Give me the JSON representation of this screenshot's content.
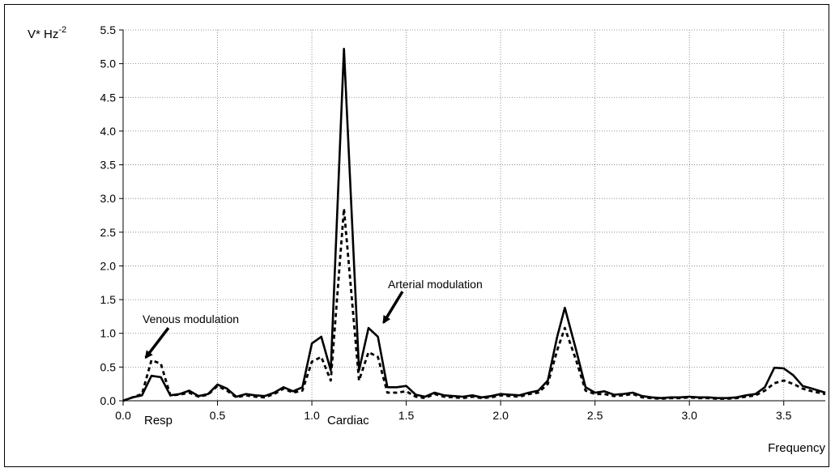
{
  "chart_data": {
    "type": "line",
    "title": "",
    "xlabel": "Frequency",
    "ylabel_main": "V* Hz",
    "ylabel_exp": "-2",
    "xlim": [
      0,
      3.72
    ],
    "ylim": [
      0,
      5.5
    ],
    "x_ticks": [
      0.0,
      0.5,
      1.0,
      1.5,
      2.0,
      2.5,
      3.0,
      3.5
    ],
    "x_tick_labels": [
      "0.0",
      "0.5",
      "1.0",
      "1.5",
      "2.0",
      "2.5",
      "3.0",
      "3.5"
    ],
    "y_ticks": [
      0.0,
      0.5,
      1.0,
      1.5,
      2.0,
      2.5,
      3.0,
      3.5,
      4.0,
      4.5,
      5.0,
      5.5
    ],
    "y_tick_labels": [
      "0.0",
      "0.5",
      "1.0",
      "1.5",
      "2.0",
      "2.5",
      "3.0",
      "3.5",
      "4.0",
      "4.5",
      "5.0",
      "5.5"
    ],
    "grid": true,
    "series": [
      {
        "style": "solid",
        "x": [
          0.0,
          0.05,
          0.1,
          0.15,
          0.2,
          0.25,
          0.3,
          0.35,
          0.4,
          0.45,
          0.5,
          0.55,
          0.6,
          0.65,
          0.7,
          0.75,
          0.8,
          0.85,
          0.9,
          0.95,
          1.0,
          1.05,
          1.1,
          1.17,
          1.25,
          1.3,
          1.35,
          1.4,
          1.45,
          1.5,
          1.55,
          1.6,
          1.65,
          1.7,
          1.75,
          1.8,
          1.85,
          1.9,
          1.95,
          2.0,
          2.05,
          2.1,
          2.15,
          2.2,
          2.25,
          2.3,
          2.34,
          2.4,
          2.45,
          2.5,
          2.55,
          2.6,
          2.65,
          2.7,
          2.75,
          2.8,
          2.85,
          2.9,
          2.95,
          3.0,
          3.05,
          3.1,
          3.15,
          3.2,
          3.25,
          3.3,
          3.35,
          3.4,
          3.45,
          3.5,
          3.55,
          3.6,
          3.65,
          3.72
        ],
        "y": [
          0.0,
          0.05,
          0.08,
          0.37,
          0.35,
          0.08,
          0.1,
          0.15,
          0.07,
          0.1,
          0.24,
          0.18,
          0.06,
          0.1,
          0.08,
          0.07,
          0.12,
          0.2,
          0.14,
          0.2,
          0.85,
          0.95,
          0.45,
          5.22,
          0.45,
          1.08,
          0.95,
          0.2,
          0.2,
          0.22,
          0.09,
          0.06,
          0.12,
          0.08,
          0.07,
          0.06,
          0.08,
          0.05,
          0.07,
          0.1,
          0.09,
          0.08,
          0.12,
          0.15,
          0.3,
          0.95,
          1.38,
          0.75,
          0.2,
          0.12,
          0.14,
          0.09,
          0.1,
          0.12,
          0.07,
          0.05,
          0.04,
          0.05,
          0.05,
          0.06,
          0.05,
          0.05,
          0.04,
          0.04,
          0.05,
          0.08,
          0.1,
          0.2,
          0.49,
          0.48,
          0.38,
          0.22,
          0.18,
          0.12
        ]
      },
      {
        "style": "dashed",
        "x": [
          0.0,
          0.05,
          0.1,
          0.15,
          0.2,
          0.25,
          0.3,
          0.35,
          0.4,
          0.45,
          0.5,
          0.55,
          0.6,
          0.65,
          0.7,
          0.75,
          0.8,
          0.85,
          0.9,
          0.95,
          1.0,
          1.05,
          1.1,
          1.17,
          1.25,
          1.3,
          1.35,
          1.4,
          1.45,
          1.5,
          1.55,
          1.6,
          1.65,
          1.7,
          1.75,
          1.8,
          1.85,
          1.9,
          1.95,
          2.0,
          2.05,
          2.1,
          2.15,
          2.2,
          2.25,
          2.3,
          2.34,
          2.4,
          2.45,
          2.5,
          2.55,
          2.6,
          2.65,
          2.7,
          2.75,
          2.8,
          2.85,
          2.9,
          2.95,
          3.0,
          3.05,
          3.1,
          3.15,
          3.2,
          3.25,
          3.3,
          3.35,
          3.4,
          3.45,
          3.5,
          3.55,
          3.6,
          3.65,
          3.72
        ],
        "y": [
          0.0,
          0.05,
          0.1,
          0.6,
          0.55,
          0.08,
          0.09,
          0.12,
          0.06,
          0.09,
          0.22,
          0.15,
          0.05,
          0.08,
          0.06,
          0.05,
          0.1,
          0.18,
          0.12,
          0.15,
          0.58,
          0.65,
          0.3,
          2.85,
          0.3,
          0.72,
          0.65,
          0.12,
          0.12,
          0.14,
          0.06,
          0.04,
          0.1,
          0.06,
          0.05,
          0.04,
          0.06,
          0.04,
          0.05,
          0.08,
          0.07,
          0.06,
          0.1,
          0.12,
          0.25,
          0.75,
          1.08,
          0.6,
          0.15,
          0.1,
          0.1,
          0.07,
          0.08,
          0.1,
          0.05,
          0.04,
          0.03,
          0.04,
          0.04,
          0.05,
          0.04,
          0.04,
          0.03,
          0.03,
          0.04,
          0.06,
          0.08,
          0.15,
          0.26,
          0.3,
          0.25,
          0.18,
          0.14,
          0.1
        ]
      }
    ],
    "annotations": [
      {
        "text": "Venous modulation",
        "anchor_x": 0.24,
        "anchor_y": 1.08,
        "tip_x": 0.12,
        "tip_y": 0.64
      },
      {
        "text": "Arterial modulation",
        "anchor_x": 1.48,
        "anchor_y": 1.62,
        "tip_x": 1.38,
        "tip_y": 1.16
      }
    ],
    "region_labels": [
      "Resp",
      "Cardiac"
    ]
  }
}
